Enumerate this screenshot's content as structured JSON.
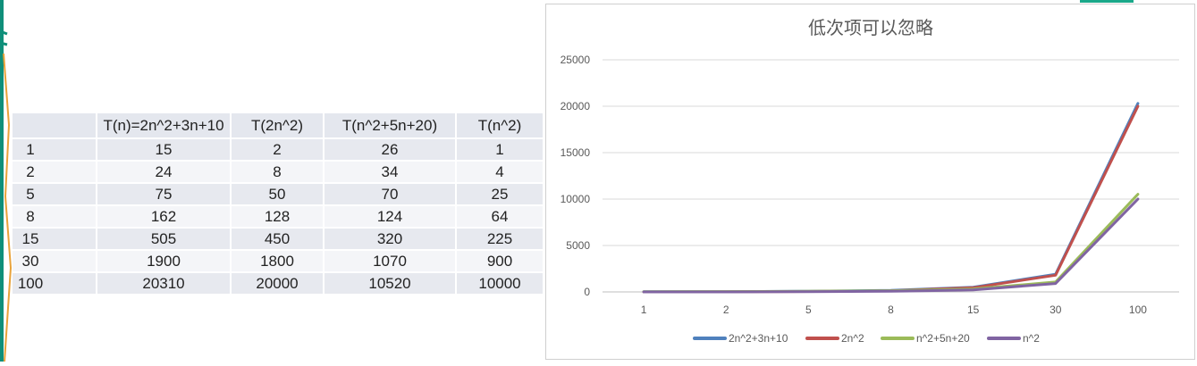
{
  "table": {
    "headers": [
      "",
      "T(n)=2n^2+3n+10",
      "T(2n^2)",
      "T(n^2+5n+20)",
      "T(n^2)"
    ],
    "rows": [
      [
        "1",
        "15",
        "2",
        "26",
        "1"
      ],
      [
        "2",
        "24",
        "8",
        "34",
        "4"
      ],
      [
        "5",
        "75",
        "50",
        "70",
        "25"
      ],
      [
        "8",
        "162",
        "128",
        "124",
        "64"
      ],
      [
        "15",
        "505",
        "450",
        "320",
        "225"
      ],
      [
        "30",
        "1900",
        "1800",
        "1070",
        "900"
      ],
      [
        "100",
        "20310",
        "20000",
        "10520",
        "10000"
      ]
    ]
  },
  "chart_data": {
    "type": "line",
    "title": "低次项可以忽略",
    "categories": [
      "1",
      "2",
      "5",
      "8",
      "15",
      "30",
      "100"
    ],
    "ylim": [
      0,
      25000
    ],
    "yticks": [
      "0",
      "5000",
      "10000",
      "15000",
      "20000",
      "25000"
    ],
    "grid": true,
    "legend_position": "bottom",
    "series": [
      {
        "name": "2n^2+3n+10",
        "color": "#4f81bd",
        "values": [
          15,
          24,
          75,
          162,
          505,
          1900,
          20310
        ]
      },
      {
        "name": "2n^2",
        "color": "#c0504d",
        "values": [
          2,
          8,
          50,
          128,
          450,
          1800,
          20000
        ]
      },
      {
        "name": "n^2+5n+20",
        "color": "#9bbb59",
        "values": [
          26,
          34,
          70,
          124,
          320,
          1070,
          10520
        ]
      },
      {
        "name": "n^2",
        "color": "#8064a2",
        "values": [
          1,
          4,
          25,
          64,
          225,
          900,
          10000
        ]
      }
    ]
  },
  "colors": {
    "strip_teal": "#0f8f7a",
    "strip_orange": "#e8a23a",
    "accent": "#1aa88a",
    "grid": "#d9d9d9"
  }
}
